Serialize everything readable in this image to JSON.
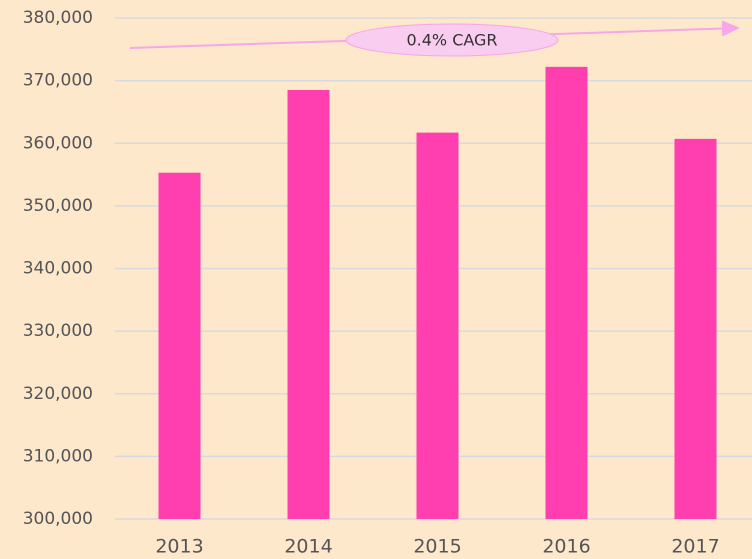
{
  "chart_data": {
    "type": "bar",
    "categories": [
      "2013",
      "2014",
      "2015",
      "2016",
      "2017"
    ],
    "values": [
      355300,
      368500,
      361700,
      372200,
      360700
    ],
    "color": "#ff3fb0",
    "ylim": [
      300000,
      380000
    ],
    "yticks": [
      {
        "value": 300000,
        "label": "300,000"
      },
      {
        "value": 310000,
        "label": "310,000"
      },
      {
        "value": 320000,
        "label": "320,000"
      },
      {
        "value": 330000,
        "label": "330,000"
      },
      {
        "value": 340000,
        "label": "340,000"
      },
      {
        "value": 350000,
        "label": "350,000"
      },
      {
        "value": 360000,
        "label": "360,000"
      },
      {
        "value": 370000,
        "label": "370,000"
      },
      {
        "value": 380000,
        "label": "380,000"
      }
    ],
    "grid": true,
    "annotation": "0.4% CAGR"
  }
}
